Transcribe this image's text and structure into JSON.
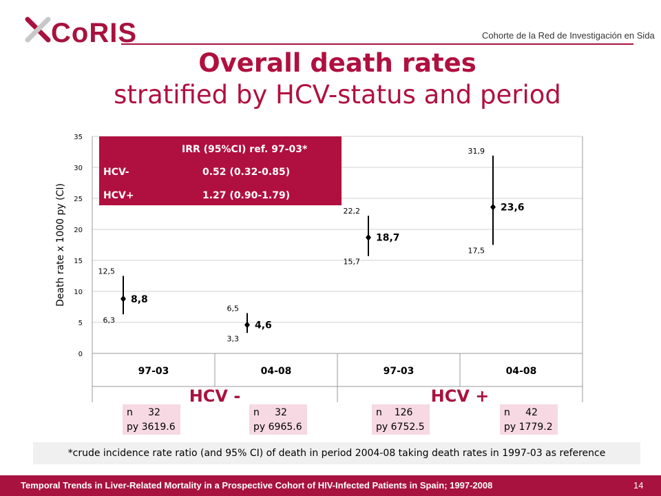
{
  "header": {
    "logo_text": "CoRIS",
    "org_name": "Cohorte de la Red de Investigación en Sida"
  },
  "title": "Overall death rates",
  "subtitle": "stratified by HCV-status and period",
  "chart_data": {
    "type": "scatter",
    "ylabel": "Death rate x 1000 py (CI)",
    "ylim": [
      0,
      35
    ],
    "yticks": [
      0,
      5,
      10,
      15,
      20,
      25,
      30,
      35
    ],
    "categories": [
      "97-03",
      "04-08",
      "97-03",
      "04-08"
    ],
    "groups": [
      "HCV -",
      "HCV +"
    ],
    "points": [
      {
        "category": "97-03",
        "group": "HCV -",
        "rate": 8.8,
        "lower": 6.3,
        "upper": 12.5,
        "rate_label": "8,8",
        "lower_label": "6,3",
        "upper_label": "12,5"
      },
      {
        "category": "04-08",
        "group": "HCV -",
        "rate": 4.6,
        "lower": 3.3,
        "upper": 6.5,
        "rate_label": "4,6",
        "lower_label": "3,3",
        "upper_label": "6,5"
      },
      {
        "category": "97-03",
        "group": "HCV +",
        "rate": 18.7,
        "lower": 15.7,
        "upper": 22.2,
        "rate_label": "18,7",
        "lower_label": "15,7",
        "upper_label": "22,2"
      },
      {
        "category": "04-08",
        "group": "HCV +",
        "rate": 23.6,
        "lower": 17.5,
        "upper": 31.9,
        "rate_label": "23,6",
        "lower_label": "17,5",
        "upper_label": "31,9"
      }
    ],
    "grid": true
  },
  "irr_table": {
    "header": "IRR (95%CI) ref. 97-03*",
    "rows": [
      {
        "label": "HCV-",
        "value": "0.52 (0.32-0.85)"
      },
      {
        "label": "HCV+",
        "value": "1.27 (0.90-1.79)"
      }
    ]
  },
  "counts": [
    {
      "n_label": "n",
      "n": "32",
      "py_label": "py",
      "py": "3619.6"
    },
    {
      "n_label": "n",
      "n": "32",
      "py_label": "py",
      "py": "6965.6"
    },
    {
      "n_label": "n",
      "n": "126",
      "py_label": "py",
      "py": "6752.5"
    },
    {
      "n_label": "n",
      "n": "42",
      "py_label": "py",
      "py": "1779.2"
    }
  ],
  "note": "*crude incidence rate ratio (and 95% CI) of death in period 2004-08 taking death rates in 1997-03 as reference",
  "footer": {
    "text": "Temporal Trends in Liver-Related Mortality in a Prospective Cohort of HIV-Infected Patients in Spain; 1997-2008",
    "page": "14"
  },
  "colors": {
    "brand": "#a8123e",
    "irr_box": "#b0103f",
    "count_box": "#f6d9e2"
  }
}
